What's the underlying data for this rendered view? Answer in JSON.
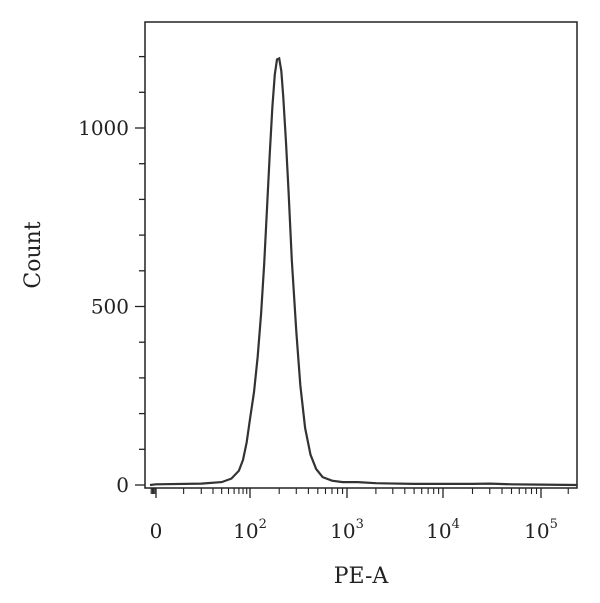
{
  "chart_data": {
    "type": "line",
    "title": "",
    "xlabel": "PE-A",
    "ylabel": "Count",
    "x_scale": "biexponential",
    "xlim": [
      -50,
      250000
    ],
    "ylim": [
      0,
      1250
    ],
    "grid": false,
    "y_ticks": [
      {
        "value": 0,
        "label": "0"
      },
      {
        "value": 500,
        "label": "500"
      },
      {
        "value": 1000,
        "label": "1000"
      }
    ],
    "x_ticks": [
      {
        "value": 0,
        "base": "0",
        "exp": ""
      },
      {
        "value": 100,
        "base": "10",
        "exp": "2"
      },
      {
        "value": 1000,
        "base": "10",
        "exp": "3"
      },
      {
        "value": 10000,
        "base": "10",
        "exp": "4"
      },
      {
        "value": 100000,
        "base": "10",
        "exp": "5"
      }
    ],
    "series": [
      {
        "x": [
          -50,
          0,
          20,
          40,
          55,
          70,
          80,
          90,
          100,
          110,
          120,
          130,
          140,
          150,
          160,
          170,
          180,
          190,
          200,
          210,
          220,
          235,
          250,
          270,
          300,
          330,
          370,
          420,
          480,
          560,
          700,
          900,
          1300,
          2000,
          5000,
          10000,
          20000,
          30000,
          50000,
          100000,
          250000
        ],
        "y": [
          0,
          2,
          4,
          8,
          18,
          40,
          70,
          120,
          185,
          260,
          360,
          480,
          620,
          780,
          930,
          1060,
          1150,
          1192,
          1195,
          1160,
          1090,
          960,
          820,
          630,
          430,
          280,
          160,
          85,
          45,
          22,
          12,
          8,
          8,
          5,
          3,
          3,
          3,
          4,
          2,
          1,
          0
        ]
      }
    ]
  }
}
